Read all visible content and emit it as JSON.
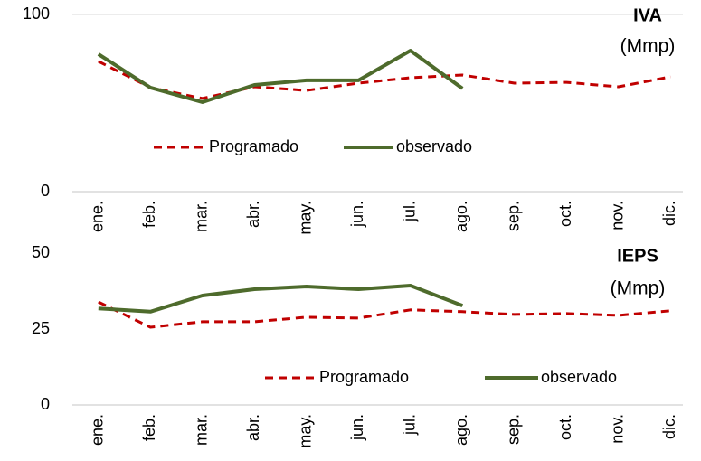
{
  "chart_data": [
    {
      "type": "line",
      "title": "IVA",
      "subtitle": "(Mmp)",
      "categories": [
        "ene.",
        "feb.",
        "mar.",
        "abr.",
        "may.",
        "jun.",
        "jul.",
        "ago.",
        "sep.",
        "oct.",
        "nov.",
        "dic."
      ],
      "series": [
        {
          "name": "Programado",
          "color": "#c00000",
          "dashed": true,
          "values": [
            73.5,
            58.7,
            52.6,
            59.2,
            57.1,
            61.2,
            64.3,
            65.8,
            61.2,
            61.7,
            59.2,
            64.8
          ]
        },
        {
          "name": "observado",
          "color": "#4e6b2c",
          "dashed": false,
          "values": [
            77.6,
            58.7,
            50.5,
            60.2,
            62.8,
            62.8,
            79.6,
            58.2,
            null,
            null,
            null,
            null
          ]
        }
      ],
      "ylim": [
        0,
        100
      ],
      "yticks": [
        0,
        100
      ],
      "grid": true
    },
    {
      "type": "line",
      "title": "IEPS",
      "subtitle": "(Mmp)",
      "categories": [
        "ene.",
        "feb.",
        "mar.",
        "abr.",
        "may.",
        "jun.",
        "jul.",
        "ago.",
        "sep.",
        "oct.",
        "nov.",
        "dic."
      ],
      "series": [
        {
          "name": "Programado",
          "color": "#c00000",
          "dashed": true,
          "values": [
            33.9,
            25.6,
            27.4,
            27.4,
            28.9,
            28.6,
            31.3,
            30.7,
            29.8,
            30.1,
            29.5,
            31.0
          ]
        },
        {
          "name": "observado",
          "color": "#4e6b2c",
          "dashed": false,
          "values": [
            31.8,
            30.7,
            36.0,
            38.1,
            39.0,
            38.1,
            39.3,
            32.7,
            null,
            null,
            null,
            null
          ]
        }
      ],
      "ylim": [
        0,
        50
      ],
      "yticks": [
        0,
        25,
        50
      ],
      "grid": false
    }
  ]
}
